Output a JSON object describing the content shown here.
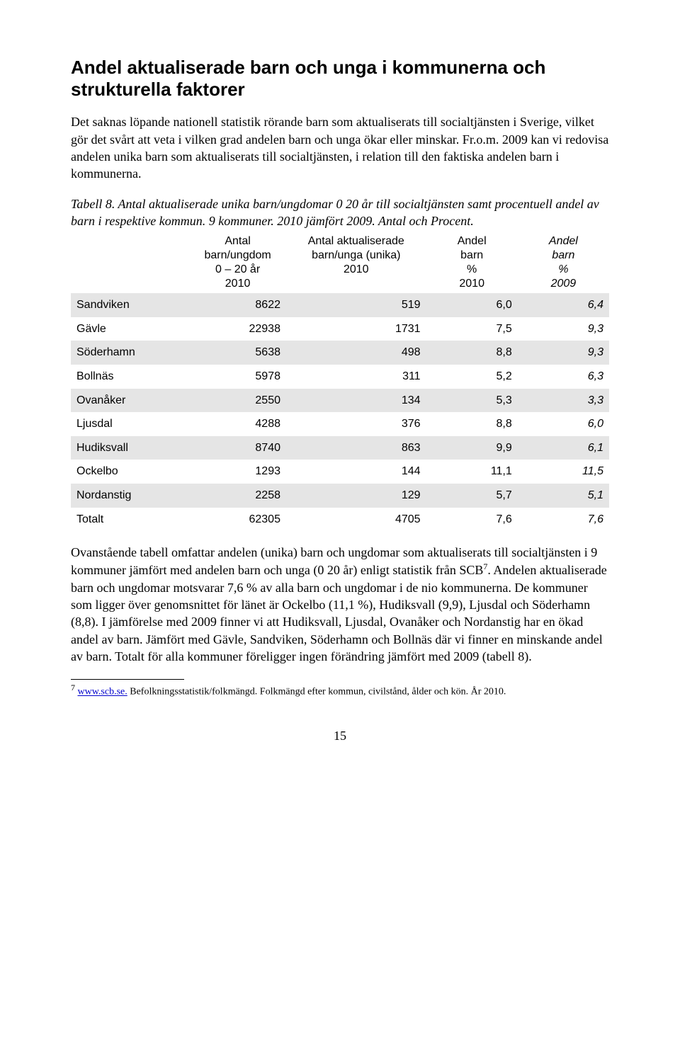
{
  "title": "Andel aktualiserade barn och unga i kommunerna och strukturella faktorer",
  "para1": "Det saknas löpande nationell statistik rörande barn som aktualiserats till socialtjänsten i Sverige, vilket gör det svårt att veta i vilken grad andelen barn och unga ökar eller minskar. Fr.o.m. 2009 kan vi redovisa andelen unika barn som aktualiserats till socialtjänsten, i relation till den faktiska andelen barn i kommunerna.",
  "caption": "Tabell 8. Antal aktualiserade unika barn/ungdomar 0 20 år till socialtjänsten samt procentuell andel av barn i respektive kommun. 9 kommuner. 2010 jämfört 2009. Antal och Procent.",
  "table": {
    "header": {
      "c1_l1": "Antal",
      "c1_l2": "barn/ungdom",
      "c1_l3": "0 – 20 år",
      "c1_l4": "2010",
      "c2_l1": "Antal aktualiserade",
      "c2_l2": "barn/unga (unika)",
      "c2_l3": "2010",
      "c3_l1": "Andel",
      "c3_l2": "barn",
      "c3_l3": "%",
      "c3_l4": "2010",
      "c4_l1": "Andel",
      "c4_l2": "barn",
      "c4_l3": "%",
      "c4_l4": "2009"
    },
    "rows": [
      {
        "label": "Sandviken",
        "c1": "8622",
        "c2": "519",
        "c3": "6,0",
        "c4": "6,4",
        "shade": true
      },
      {
        "label": "Gävle",
        "c1": "22938",
        "c2": "1731",
        "c3": "7,5",
        "c4": "9,3",
        "shade": false
      },
      {
        "label": "Söderhamn",
        "c1": "5638",
        "c2": "498",
        "c3": "8,8",
        "c4": "9,3",
        "shade": true
      },
      {
        "label": "Bollnäs",
        "c1": "5978",
        "c2": "311",
        "c3": "5,2",
        "c4": "6,3",
        "shade": false
      },
      {
        "label": "Ovanåker",
        "c1": "2550",
        "c2": "134",
        "c3": "5,3",
        "c4": "3,3",
        "shade": true
      },
      {
        "label": "Ljusdal",
        "c1": "4288",
        "c2": "376",
        "c3": "8,8",
        "c4": "6,0",
        "shade": false
      },
      {
        "label": "Hudiksvall",
        "c1": "8740",
        "c2": "863",
        "c3": "9,9",
        "c4": "6,1",
        "shade": true
      },
      {
        "label": "Ockelbo",
        "c1": "1293",
        "c2": "144",
        "c3": "11,1",
        "c4": "11,5",
        "shade": false
      },
      {
        "label": "Nordanstig",
        "c1": "2258",
        "c2": "129",
        "c3": "5,7",
        "c4": "5,1",
        "shade": true
      },
      {
        "label": "Totalt",
        "c1": "62305",
        "c2": "4705",
        "c3": "7,6",
        "c4": "7,6",
        "shade": false
      }
    ],
    "col_widths": [
      "22%",
      "18%",
      "26%",
      "17%",
      "17%"
    ],
    "shade_color": "#e5e5e5",
    "font_family": "Arial",
    "font_size_pt": 12
  },
  "para2_pre": "Ovanstående tabell omfattar andelen (unika) barn och ungdomar som aktualiserats till socialtjänsten i 9 kommuner jämfört med andelen barn och unga (0 20 år) enligt statistik från SCB",
  "para2_sup": "7",
  "para2_post": ". Andelen aktualiserade barn och ungdomar motsvarar 7,6 % av alla barn och ungdomar i de nio kommunerna. De kommuner som ligger över genomsnittet för länet är Ockelbo (11,1 %), Hudiksvall (9,9), Ljusdal och Söderhamn (8,8). I jämförelse med 2009 finner vi att Hudiksvall, Ljusdal, Ovanåker och Nordanstig har en ökad andel av barn. Jämfört med Gävle, Sandviken, Söderhamn och Bollnäs där vi finner en minskande andel av barn. Totalt för alla kommuner föreligger ingen förändring jämfört med 2009 (tabell 8).",
  "footnote": {
    "num": "7",
    "link_text": "www.scb.se.",
    "rest": "  Befolkningsstatistik/folkmängd. Folkmängd efter kommun, civilstånd, ålder och kön. År 2010."
  },
  "page_number": "15"
}
